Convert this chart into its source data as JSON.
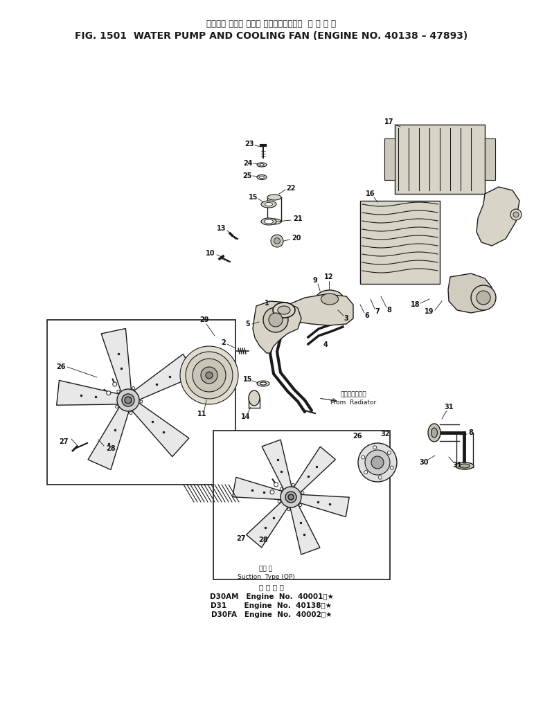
{
  "title_jp": "ウォータ ポンプ および クーリングファン  適 用 号 機",
  "title_en": "FIG. 1501  WATER PUMP AND COOLING FAN (ENGINE NO. 40138 – 47893)",
  "bg_color": "#ffffff",
  "text_color": "#111111",
  "fig_width": 7.84,
  "fig_height": 10.14,
  "dpi": 100,
  "bottom_text_jp": "適 用 号 機",
  "bottom_lines": [
    "D30AM   Engine  No.  40001～★",
    "D31       Engine  No.  40138～★",
    "D30FA   Engine  No.  40002～★"
  ],
  "suction_label_jp": "吸入 型",
  "suction_label_en": "Suction  Type (OP)",
  "radiator_label_jp": "ラジエータから",
  "radiator_label_en": "From  Radiator"
}
